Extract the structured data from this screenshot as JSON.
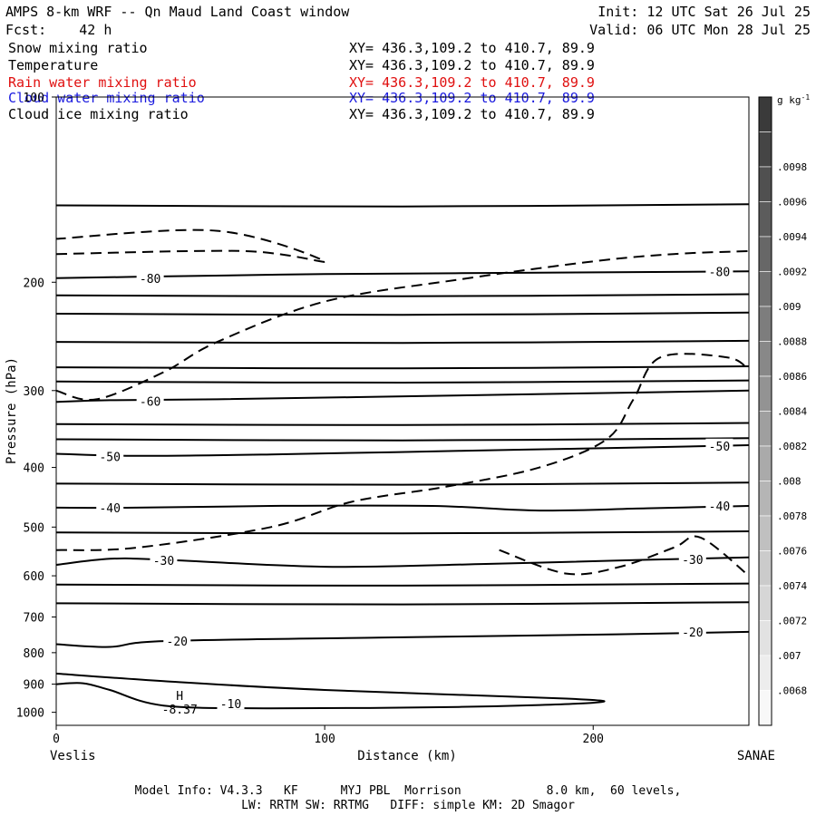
{
  "header": {
    "title": "AMPS 8-km WRF -- Qn Maud Land Coast window",
    "init": "Init: 12 UTC Sat 26 Jul 25",
    "fcst": "Fcst:    42 h",
    "valid": "Valid: 06 UTC Mon 28 Jul 25"
  },
  "fields": [
    {
      "name": "Snow mixing ratio",
      "xy": "XY= 436.3,109.2 to 410.7, 89.9",
      "color": "#000000"
    },
    {
      "name": "Temperature",
      "xy": "XY= 436.3,109.2 to 410.7, 89.9",
      "color": "#000000"
    },
    {
      "name": "Rain water mixing ratio",
      "xy": "XY= 436.3,109.2 to 410.7, 89.9",
      "color": "#e01010"
    },
    {
      "name": "Cloud water mixing ratio",
      "xy": "XY= 436.3,109.2 to 410.7, 89.9",
      "color": "#1a1adf"
    },
    {
      "name": "Cloud ice mixing ratio",
      "xy": "XY= 436.3,109.2 to 410.7, 89.9",
      "color": "#000000"
    }
  ],
  "footer": {
    "line1": "Model Info: V4.3.3   KF      MYJ PBL  Morrison            8.0 km,  60 levels,",
    "line2": "LW: RRTM SW: RRTMG   DIFF: simple KM: 2D Smagor"
  },
  "chart_data": {
    "type": "contour",
    "ylabel": "Pressure (hPa)",
    "xlabel": "Distance (km)",
    "x_left_label": "Veslis",
    "x_right_label": "SANAE",
    "xlim": [
      0,
      258
    ],
    "ylim": [
      1050,
      100
    ],
    "y_scale": "log",
    "xticks": [
      0,
      100,
      200
    ],
    "yticks": [
      100,
      200,
      300,
      400,
      500,
      600,
      700,
      800,
      900,
      1000
    ],
    "colorbar": {
      "units": "g kg-1",
      "labels": [
        ".0098",
        ".0096",
        ".0094",
        ".0092",
        ".009",
        ".0088",
        ".0086",
        ".0084",
        ".0082",
        ".008",
        ".0078",
        ".0076",
        ".0074",
        ".0072",
        ".007",
        ".0068"
      ]
    },
    "temperature_contours": [
      {
        "label": "-80",
        "points": [
          [
            0,
            197
          ],
          [
            30,
            196
          ],
          [
            100,
            194
          ],
          [
            180,
            193
          ],
          [
            258,
            192
          ]
        ],
        "label_positions": [
          [
            35,
            197
          ],
          [
            247,
            192
          ]
        ]
      },
      {
        "label": "-60",
        "points": [
          [
            0,
            313
          ],
          [
            20,
            311
          ],
          [
            60,
            310
          ],
          [
            140,
            306
          ],
          [
            220,
            302
          ],
          [
            258,
            300
          ]
        ],
        "label_positions": [
          [
            35,
            312
          ]
        ]
      },
      {
        "label": "-50",
        "points": [
          [
            0,
            380
          ],
          [
            30,
            383
          ],
          [
            80,
            381
          ],
          [
            150,
            376
          ],
          [
            220,
            371
          ],
          [
            258,
            368
          ]
        ],
        "label_positions": [
          [
            20,
            384
          ],
          [
            247,
            369
          ]
        ]
      },
      {
        "label": "-40",
        "points": [
          [
            0,
            465
          ],
          [
            30,
            465
          ],
          [
            80,
            462
          ],
          [
            140,
            462
          ],
          [
            180,
            470
          ],
          [
            220,
            466
          ],
          [
            258,
            462
          ]
        ],
        "label_positions": [
          [
            20,
            465
          ],
          [
            247,
            462
          ]
        ]
      },
      {
        "label": "-30",
        "points": [
          [
            0,
            576
          ],
          [
            20,
            563
          ],
          [
            40,
            565
          ],
          [
            100,
            580
          ],
          [
            160,
            574
          ],
          [
            220,
            565
          ],
          [
            258,
            560
          ]
        ],
        "label_positions": [
          [
            40,
            566
          ],
          [
            237,
            564
          ]
        ]
      },
      {
        "label": "-20",
        "points": [
          [
            0,
            775
          ],
          [
            20,
            783
          ],
          [
            40,
            766
          ],
          [
            120,
            756
          ],
          [
            200,
            748
          ],
          [
            258,
            740
          ]
        ],
        "label_positions": [
          [
            45,
            766
          ],
          [
            237,
            740
          ]
        ]
      },
      {
        "label": "-10",
        "points": [
          [
            0,
            900
          ],
          [
            10,
            897
          ],
          [
            20,
            920
          ],
          [
            40,
            975
          ],
          [
            80,
            985
          ],
          [
            150,
            980
          ],
          [
            200,
            965
          ],
          [
            190,
            950
          ],
          [
            100,
            920
          ],
          [
            40,
            890
          ],
          [
            0,
            865
          ]
        ],
        "label_positions": [
          [
            65,
            968
          ]
        ]
      }
    ],
    "extra_isotherms_hpa": [
      150,
      210,
      225,
      250,
      275,
      290,
      340,
      360,
      425,
      510,
      620,
      665
    ],
    "snow_contours_dashed": [
      {
        "points": [
          [
            0,
            300
          ],
          [
            15,
            310
          ],
          [
            40,
            280
          ],
          [
            60,
            250
          ],
          [
            100,
            215
          ],
          [
            150,
            198
          ],
          [
            200,
            185
          ],
          [
            230,
            180
          ],
          [
            258,
            178
          ]
        ]
      },
      {
        "points": [
          [
            0,
            545
          ],
          [
            30,
            540
          ],
          [
            80,
            500
          ],
          [
            110,
            455
          ],
          [
            145,
            430
          ],
          [
            180,
            400
          ],
          [
            205,
            360
          ],
          [
            215,
            310
          ],
          [
            225,
            265
          ],
          [
            250,
            265
          ],
          [
            258,
            278
          ]
        ]
      },
      {
        "points": [
          [
            165,
            545
          ],
          [
            190,
            595
          ],
          [
            210,
            580
          ],
          [
            230,
            540
          ],
          [
            240,
            520
          ],
          [
            258,
            600
          ]
        ]
      },
      {
        "points": [
          [
            0,
            180
          ],
          [
            70,
            178
          ],
          [
            100,
            185
          ],
          [
            60,
            165
          ],
          [
            0,
            170
          ]
        ]
      }
    ],
    "extremum": {
      "label": "H",
      "value": "-8.37",
      "x": 46,
      "p": 955
    }
  }
}
